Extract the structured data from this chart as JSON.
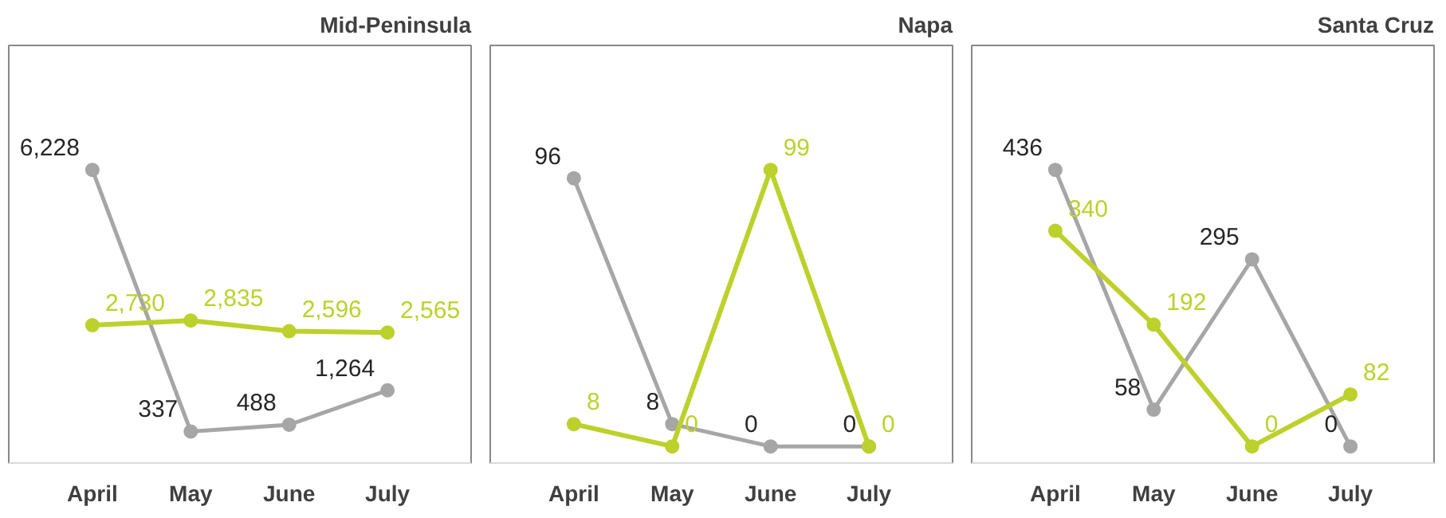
{
  "chart_data": [
    {
      "type": "line",
      "title": "Mid-Peninsula",
      "categories": [
        "April",
        "May",
        "June",
        "July"
      ],
      "series": [
        {
          "color": "#a6a6a6",
          "values": [
            6228,
            337,
            488,
            1264
          ],
          "value_labels": [
            "6,228",
            "337",
            "488",
            "1,264"
          ]
        },
        {
          "color": "#bcd12b",
          "values": [
            2730,
            2835,
            2596,
            2565
          ],
          "value_labels": [
            "2,730",
            "2,835",
            "2,596",
            "2,565"
          ]
        }
      ],
      "marker": "circle",
      "grid": false,
      "tick_labels": "x"
    },
    {
      "type": "line",
      "title": "Napa",
      "categories": [
        "April",
        "May",
        "June",
        "July"
      ],
      "series": [
        {
          "color": "#a6a6a6",
          "values": [
            96,
            8,
            0,
            0
          ]
        },
        {
          "color": "#bcd12b",
          "values": [
            8,
            0,
            99,
            0
          ]
        }
      ],
      "data_labels": true,
      "marker": "circle",
      "grid": false,
      "tick_labels": "x"
    },
    {
      "type": "line",
      "title": "Santa Cruz",
      "categories": [
        "April",
        "May",
        "June",
        "July"
      ],
      "series": [
        {
          "color": "#a6a6a6",
          "values": [
            436,
            58,
            295,
            0
          ]
        },
        {
          "color": "#bcd12b",
          "values": [
            340,
            192,
            0,
            82
          ]
        }
      ],
      "data_labels": true,
      "marker": "circle",
      "grid": false,
      "tick_labels": "x"
    }
  ]
}
